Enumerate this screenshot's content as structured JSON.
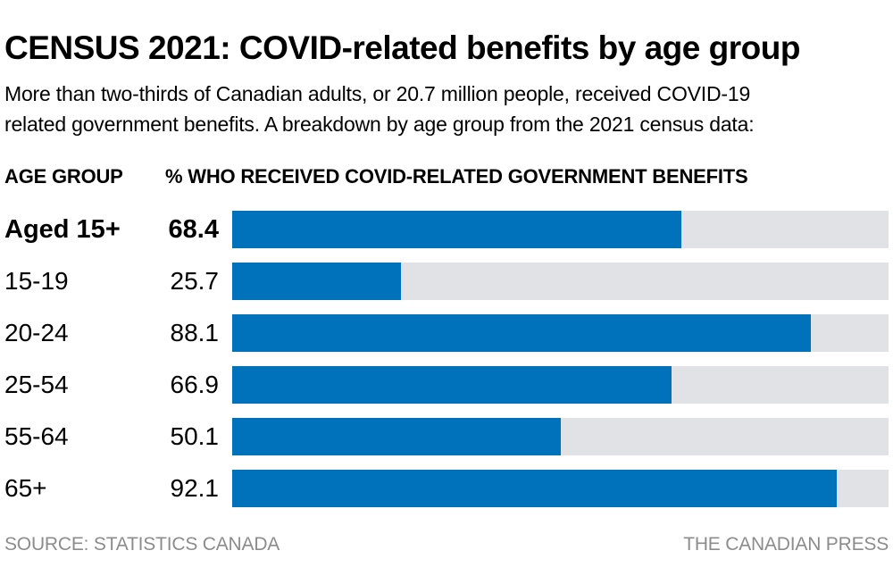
{
  "title": {
    "bold": "CENSUS 2021:",
    "regular": " COVID-related benefits by age group"
  },
  "subtitle_lines": [
    "More than two-thirds of Canadian adults, or 20.7 million people, received COVID-19",
    "related government benefits. A breakdown by age group from the 2021 census data:"
  ],
  "columns": {
    "age_group": "AGE GROUP",
    "percent": "% WHO RECEIVED COVID-RELATED GOVERNMENT BENEFITS"
  },
  "footer": {
    "source": "SOURCE: STATISTICS CANADA",
    "credit": "THE CANADIAN PRESS"
  },
  "colors": {
    "bar_fill": "#0072BC",
    "bar_track": "#E0E2E5",
    "text": "#000000",
    "footer_text": "#8C8C8C",
    "background": "#FFFFFF"
  },
  "chart_data": {
    "type": "bar",
    "orientation": "horizontal",
    "title": "CENSUS 2021: COVID-related benefits by age group",
    "xlabel": "% who received COVID-related government benefits",
    "categories": [
      "Aged 15+",
      "15-19",
      "20-24",
      "25-54",
      "55-64",
      "65+"
    ],
    "values": [
      68.4,
      25.7,
      88.1,
      66.9,
      50.1,
      92.1
    ],
    "xlim": [
      0,
      100
    ],
    "grid": false,
    "legend": false,
    "highlighted_category": "Aged 15+"
  }
}
